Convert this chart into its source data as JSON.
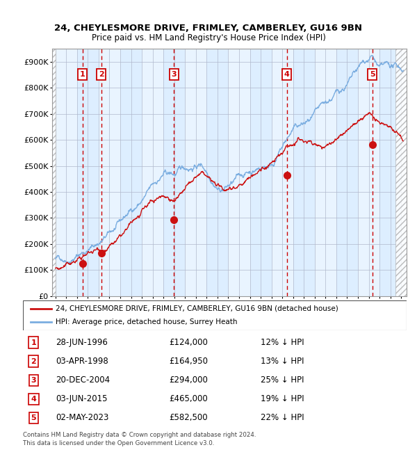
{
  "title1": "24, CHEYLESMORE DRIVE, FRIMLEY, CAMBERLEY, GU16 9BN",
  "title2": "Price paid vs. HM Land Registry's House Price Index (HPI)",
  "legend_line1": "24, CHEYLESMORE DRIVE, FRIMLEY, CAMBERLEY, GU16 9BN (detached house)",
  "legend_line2": "HPI: Average price, detached house, Surrey Heath",
  "footer1": "Contains HM Land Registry data © Crown copyright and database right 2024.",
  "footer2": "This data is licensed under the Open Government Licence v3.0.",
  "sales": [
    {
      "num": 1,
      "date_label": "28-JUN-1996",
      "price": 124000,
      "discount": "12% ↓ HPI",
      "year": 1996.5
    },
    {
      "num": 2,
      "date_label": "03-APR-1998",
      "price": 164950,
      "discount": "13% ↓ HPI",
      "year": 1998.25
    },
    {
      "num": 3,
      "date_label": "20-DEC-2004",
      "price": 294000,
      "discount": "25% ↓ HPI",
      "year": 2004.97
    },
    {
      "num": 4,
      "date_label": "03-JUN-2015",
      "price": 465000,
      "discount": "19% ↓ HPI",
      "year": 2015.42
    },
    {
      "num": 5,
      "date_label": "02-MAY-2023",
      "price": 582500,
      "discount": "22% ↓ HPI",
      "year": 2023.33
    }
  ],
  "hpi_color": "#7aade0",
  "price_color": "#cc1111",
  "vline_colors": [
    "#cc0000",
    "#cc0000",
    "#cc0000",
    "#cc0000",
    "#cc0000"
  ],
  "bg_color": "#ddeeff",
  "grid_color": "#b0b8cc",
  "ylim": [
    0,
    950000
  ],
  "xlim_start": 1993.7,
  "xlim_end": 2026.5,
  "yticks": [
    0,
    100000,
    200000,
    300000,
    400000,
    500000,
    600000,
    700000,
    800000,
    900000
  ],
  "xticks": [
    1994,
    1995,
    1996,
    1997,
    1998,
    1999,
    2000,
    2001,
    2002,
    2003,
    2004,
    2005,
    2006,
    2007,
    2008,
    2009,
    2010,
    2011,
    2012,
    2013,
    2014,
    2015,
    2016,
    2017,
    2018,
    2019,
    2020,
    2021,
    2022,
    2023,
    2024,
    2025,
    2026
  ]
}
